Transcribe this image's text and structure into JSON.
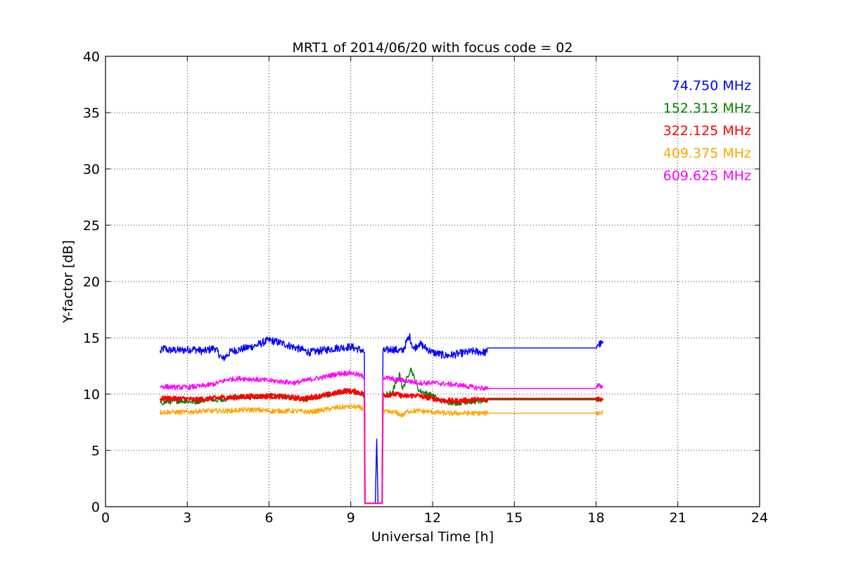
{
  "chart_data": {
    "type": "line",
    "title": "MRT1 of 2014/06/20 with focus code = 02",
    "xlabel": "Universal Time [h]",
    "ylabel": "Y-factor [dB]",
    "xlim": [
      0,
      24
    ],
    "ylim": [
      0,
      40
    ],
    "xticks": [
      0,
      3,
      6,
      9,
      12,
      15,
      18,
      21,
      24
    ],
    "yticks": [
      0,
      5,
      10,
      15,
      20,
      25,
      30,
      35,
      40
    ],
    "grid": true,
    "legend_position": "top-right",
    "series": [
      {
        "name": "74.750 MHz",
        "color": "#0000ff",
        "points": [
          [
            2.0,
            13.7
          ],
          [
            2.15,
            14.1
          ],
          [
            2.3,
            13.9
          ],
          [
            2.8,
            13.9
          ],
          [
            3.2,
            14.0
          ],
          [
            3.6,
            13.8
          ],
          [
            4.0,
            14.1
          ],
          [
            4.3,
            13.1
          ],
          [
            4.6,
            13.8
          ],
          [
            5.0,
            14.0
          ],
          [
            5.5,
            14.3
          ],
          [
            6.0,
            14.8
          ],
          [
            6.5,
            14.5
          ],
          [
            7.0,
            14.1
          ],
          [
            7.5,
            13.7
          ],
          [
            8.0,
            13.9
          ],
          [
            8.5,
            14.1
          ],
          [
            9.0,
            14.2
          ],
          [
            9.4,
            13.9
          ],
          [
            9.5,
            13.7
          ],
          [
            9.52,
            0.3
          ],
          [
            9.9,
            0.3
          ],
          [
            9.95,
            6.0
          ],
          [
            10.0,
            0.3
          ],
          [
            10.15,
            0.3
          ],
          [
            10.18,
            13.8
          ],
          [
            10.5,
            14.0
          ],
          [
            10.9,
            13.8
          ],
          [
            11.15,
            15.2
          ],
          [
            11.3,
            14.0
          ],
          [
            11.5,
            14.5
          ],
          [
            12.0,
            13.7
          ],
          [
            12.5,
            13.4
          ],
          [
            13.0,
            13.6
          ],
          [
            13.5,
            13.8
          ],
          [
            14.0,
            13.7
          ],
          [
            14.02,
            14.1
          ],
          [
            16.0,
            14.1
          ],
          [
            18.0,
            14.1
          ],
          [
            18.05,
            14.4
          ],
          [
            18.25,
            14.5
          ]
        ]
      },
      {
        "name": "152.313 MHz",
        "color": "#008000",
        "points": [
          [
            2.0,
            9.2
          ],
          [
            2.3,
            9.3
          ],
          [
            2.8,
            9.4
          ],
          [
            3.3,
            9.3
          ],
          [
            3.8,
            9.6
          ],
          [
            4.3,
            9.5
          ],
          [
            4.8,
            9.8
          ],
          [
            5.3,
            9.7
          ],
          [
            5.8,
            9.9
          ],
          [
            6.3,
            9.8
          ],
          [
            6.8,
            9.7
          ],
          [
            7.3,
            9.5
          ],
          [
            7.8,
            9.8
          ],
          [
            8.3,
            10.0
          ],
          [
            8.8,
            10.3
          ],
          [
            9.2,
            10.2
          ],
          [
            9.5,
            9.9
          ],
          [
            9.52,
            0.3
          ],
          [
            10.15,
            0.3
          ],
          [
            10.18,
            9.9
          ],
          [
            10.5,
            10.1
          ],
          [
            10.8,
            11.8
          ],
          [
            10.9,
            10.4
          ],
          [
            11.2,
            12.3
          ],
          [
            11.5,
            10.3
          ],
          [
            12.0,
            9.9
          ],
          [
            12.3,
            9.4
          ],
          [
            12.8,
            9.2
          ],
          [
            13.3,
            9.3
          ],
          [
            14.0,
            9.4
          ],
          [
            14.02,
            9.5
          ],
          [
            18.0,
            9.5
          ],
          [
            18.25,
            9.5
          ]
        ]
      },
      {
        "name": "322.125 MHz",
        "color": "#ff0000",
        "points": [
          [
            2.0,
            9.6
          ],
          [
            2.8,
            9.6
          ],
          [
            3.3,
            9.5
          ],
          [
            3.8,
            9.6
          ],
          [
            4.3,
            9.7
          ],
          [
            4.8,
            9.7
          ],
          [
            5.3,
            9.8
          ],
          [
            5.8,
            9.8
          ],
          [
            6.3,
            9.8
          ],
          [
            6.8,
            9.7
          ],
          [
            7.3,
            9.6
          ],
          [
            7.8,
            9.8
          ],
          [
            8.3,
            10.0
          ],
          [
            8.8,
            10.3
          ],
          [
            9.2,
            10.2
          ],
          [
            9.5,
            10.0
          ],
          [
            9.52,
            0.3
          ],
          [
            10.15,
            0.3
          ],
          [
            10.18,
            9.9
          ],
          [
            10.6,
            10.0
          ],
          [
            11.0,
            9.8
          ],
          [
            11.4,
            9.9
          ],
          [
            12.0,
            9.6
          ],
          [
            12.5,
            9.4
          ],
          [
            13.0,
            9.4
          ],
          [
            13.5,
            9.5
          ],
          [
            14.0,
            9.5
          ],
          [
            14.02,
            9.6
          ],
          [
            18.0,
            9.6
          ],
          [
            18.25,
            9.6
          ]
        ]
      },
      {
        "name": "409.375 MHz",
        "color": "#ffa500",
        "points": [
          [
            2.0,
            8.4
          ],
          [
            2.5,
            8.4
          ],
          [
            3.0,
            8.4
          ],
          [
            3.5,
            8.5
          ],
          [
            4.0,
            8.5
          ],
          [
            4.5,
            8.5
          ],
          [
            5.0,
            8.6
          ],
          [
            5.5,
            8.6
          ],
          [
            6.0,
            8.5
          ],
          [
            6.5,
            8.5
          ],
          [
            7.0,
            8.5
          ],
          [
            7.5,
            8.4
          ],
          [
            8.0,
            8.6
          ],
          [
            8.5,
            8.8
          ],
          [
            9.0,
            8.9
          ],
          [
            9.3,
            8.8
          ],
          [
            9.5,
            8.7
          ],
          [
            9.52,
            0.3
          ],
          [
            10.15,
            0.3
          ],
          [
            10.18,
            8.4
          ],
          [
            10.6,
            8.4
          ],
          [
            10.9,
            8.1
          ],
          [
            11.1,
            8.5
          ],
          [
            11.5,
            8.5
          ],
          [
            12.0,
            8.4
          ],
          [
            12.5,
            8.3
          ],
          [
            13.0,
            8.3
          ],
          [
            13.5,
            8.3
          ],
          [
            14.0,
            8.3
          ],
          [
            14.02,
            8.3
          ],
          [
            18.0,
            8.3
          ],
          [
            18.25,
            8.4
          ]
        ]
      },
      {
        "name": "609.625 MHz",
        "color": "#ff00ff",
        "points": [
          [
            2.0,
            10.7
          ],
          [
            2.5,
            10.6
          ],
          [
            3.0,
            10.6
          ],
          [
            3.5,
            10.7
          ],
          [
            4.0,
            10.9
          ],
          [
            4.5,
            11.3
          ],
          [
            5.0,
            11.4
          ],
          [
            5.5,
            11.3
          ],
          [
            6.0,
            11.2
          ],
          [
            6.5,
            11.1
          ],
          [
            7.0,
            11.0
          ],
          [
            7.5,
            11.3
          ],
          [
            8.0,
            11.5
          ],
          [
            8.5,
            11.8
          ],
          [
            9.0,
            11.9
          ],
          [
            9.3,
            11.7
          ],
          [
            9.5,
            11.5
          ],
          [
            9.52,
            0.3
          ],
          [
            10.15,
            0.3
          ],
          [
            10.18,
            11.5
          ],
          [
            10.6,
            11.3
          ],
          [
            11.0,
            11.2
          ],
          [
            11.5,
            11.0
          ],
          [
            12.0,
            11.0
          ],
          [
            12.5,
            10.9
          ],
          [
            13.0,
            10.8
          ],
          [
            13.5,
            10.6
          ],
          [
            14.0,
            10.5
          ],
          [
            14.02,
            10.5
          ],
          [
            18.0,
            10.5
          ],
          [
            18.1,
            10.8
          ],
          [
            18.25,
            10.6
          ]
        ]
      }
    ]
  }
}
